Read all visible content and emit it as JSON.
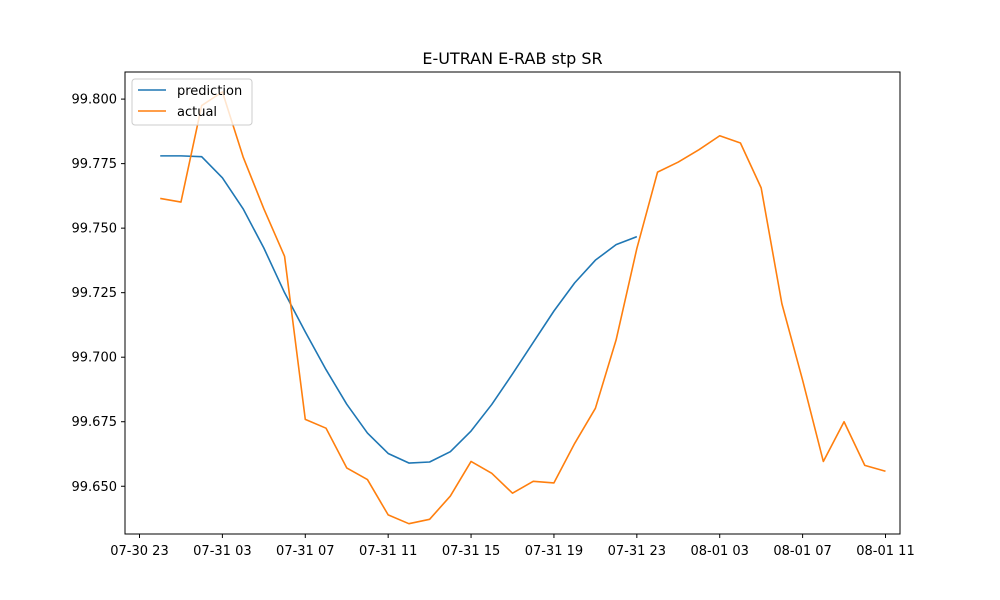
{
  "chart_data": {
    "type": "line",
    "title": "E-UTRAN E-RAB stp SR",
    "xlabel": "",
    "ylabel": "",
    "x_axis": {
      "type": "datetime",
      "range": [
        "2024-07-30 22:18",
        "2024-08-01 11:42"
      ],
      "tick_values": [
        "2024-07-30 23:00",
        "2024-07-31 03:00",
        "2024-07-31 07:00",
        "2024-07-31 11:00",
        "2024-07-31 15:00",
        "2024-07-31 19:00",
        "2024-07-31 23:00",
        "2024-08-01 03:00",
        "2024-08-01 07:00",
        "2024-08-01 11:00"
      ],
      "tick_labels": [
        "07-30 23",
        "07-31 03",
        "07-31 07",
        "07-31 11",
        "07-31 15",
        "07-31 19",
        "07-31 23",
        "08-01 03",
        "08-01 07",
        "08-01 11"
      ]
    },
    "y_axis": {
      "range": [
        99.6315,
        99.8105
      ],
      "tick_values": [
        99.65,
        99.675,
        99.7,
        99.725,
        99.75,
        99.775,
        99.8
      ],
      "tick_labels": [
        "99.650",
        "99.675",
        "99.700",
        "99.725",
        "99.750",
        "99.775",
        "99.800"
      ]
    },
    "grid": false,
    "legend_position": "top-left",
    "series": [
      {
        "name": "prediction",
        "color": "#1f77b4",
        "points": [
          [
            "2024-07-31 00:00",
            99.778
          ],
          [
            "2024-07-31 01:00",
            99.778
          ],
          [
            "2024-07-31 02:00",
            99.7777
          ],
          [
            "2024-07-31 03:00",
            99.7695
          ],
          [
            "2024-07-31 04:00",
            99.7575
          ],
          [
            "2024-07-31 05:00",
            99.7423
          ],
          [
            "2024-07-31 06:00",
            99.725
          ],
          [
            "2024-07-31 07:00",
            99.7098
          ],
          [
            "2024-07-31 08:00",
            99.6952
          ],
          [
            "2024-07-31 09:00",
            99.6818
          ],
          [
            "2024-07-31 10:00",
            99.6706
          ],
          [
            "2024-07-31 11:00",
            99.6627
          ],
          [
            "2024-07-31 12:00",
            99.659
          ],
          [
            "2024-07-31 13:00",
            99.6594
          ],
          [
            "2024-07-31 14:00",
            99.6634
          ],
          [
            "2024-07-31 15:00",
            99.6714
          ],
          [
            "2024-07-31 16:00",
            99.6817
          ],
          [
            "2024-07-31 17:00",
            99.6935
          ],
          [
            "2024-07-31 18:00",
            99.7057
          ],
          [
            "2024-07-31 19:00",
            99.7179
          ],
          [
            "2024-07-31 20:00",
            99.7288
          ],
          [
            "2024-07-31 21:00",
            99.7376
          ],
          [
            "2024-07-31 22:00",
            99.7436
          ],
          [
            "2024-07-31 23:00",
            99.7467
          ]
        ]
      },
      {
        "name": "actual",
        "color": "#ff7f0e",
        "points": [
          [
            "2024-07-31 00:00",
            99.7615
          ],
          [
            "2024-07-31 01:00",
            99.7601
          ],
          [
            "2024-07-31 02:00",
            99.7975
          ],
          [
            "2024-07-31 03:00",
            99.8028
          ],
          [
            "2024-07-31 04:00",
            99.7776
          ],
          [
            "2024-07-31 05:00",
            99.7575
          ],
          [
            "2024-07-31 06:00",
            99.7391
          ],
          [
            "2024-07-31 07:00",
            99.6759
          ],
          [
            "2024-07-31 08:00",
            99.6725
          ],
          [
            "2024-07-31 09:00",
            99.6571
          ],
          [
            "2024-07-31 10:00",
            99.6526
          ],
          [
            "2024-07-31 11:00",
            99.6389
          ],
          [
            "2024-07-31 12:00",
            99.6355
          ],
          [
            "2024-07-31 13:00",
            99.6372
          ],
          [
            "2024-07-31 14:00",
            99.6462
          ],
          [
            "2024-07-31 15:00",
            99.6596
          ],
          [
            "2024-07-31 16:00",
            99.655
          ],
          [
            "2024-07-31 17:00",
            99.6473
          ],
          [
            "2024-07-31 18:00",
            99.6519
          ],
          [
            "2024-07-31 19:00",
            99.6513
          ],
          [
            "2024-07-31 20:00",
            99.6666
          ],
          [
            "2024-07-31 21:00",
            99.6802
          ],
          [
            "2024-07-31 22:00",
            99.7067
          ],
          [
            "2024-07-31 23:00",
            99.7421
          ],
          [
            "2024-08-01 00:00",
            99.7717
          ],
          [
            "2024-08-01 01:00",
            99.7756
          ],
          [
            "2024-08-01 02:00",
            99.7804
          ],
          [
            "2024-08-01 03:00",
            99.7858
          ],
          [
            "2024-08-01 04:00",
            99.783
          ],
          [
            "2024-08-01 05:00",
            99.7656
          ],
          [
            "2024-08-01 06:00",
            99.7207
          ],
          [
            "2024-08-01 07:00",
            99.6911
          ],
          [
            "2024-08-01 08:00",
            99.6596
          ],
          [
            "2024-08-01 09:00",
            99.675
          ],
          [
            "2024-08-01 10:00",
            99.6581
          ],
          [
            "2024-08-01 11:00",
            99.6558
          ]
        ]
      }
    ]
  }
}
